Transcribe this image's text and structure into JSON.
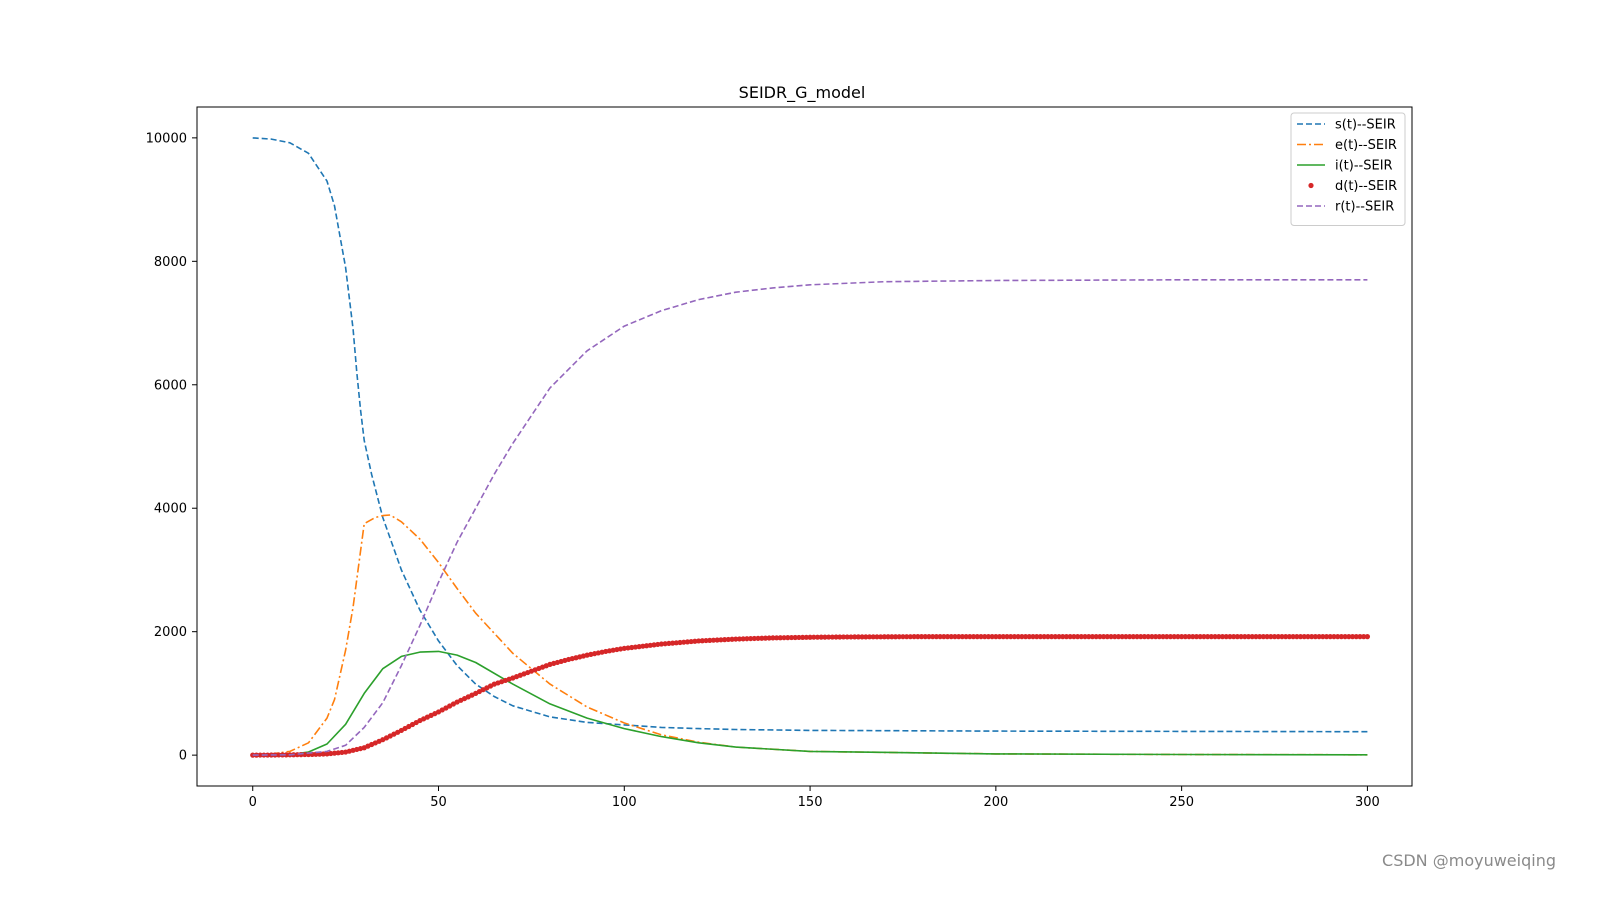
{
  "chart_data": {
    "type": "line",
    "title": "SEIDR_G_model",
    "xlabel": "",
    "ylabel": "",
    "xlim": [
      -15,
      312
    ],
    "ylim": [
      -500,
      10500
    ],
    "xticks": [
      0,
      50,
      100,
      150,
      200,
      250,
      300
    ],
    "yticks": [
      0,
      2000,
      4000,
      6000,
      8000,
      10000
    ],
    "grid": false,
    "legend_position": "top-right",
    "series": [
      {
        "name": "s(t)--SEIR",
        "color": "#1f77b4",
        "style": "dashed",
        "x": [
          0,
          5,
          10,
          15,
          20,
          22,
          25,
          27,
          28,
          29,
          30,
          32,
          35,
          40,
          45,
          50,
          55,
          60,
          65,
          70,
          80,
          90,
          100,
          110,
          120,
          130,
          150,
          200,
          250,
          300
        ],
        "y": [
          10000,
          9980,
          9920,
          9750,
          9300,
          8900,
          7900,
          6900,
          6200,
          5600,
          5100,
          4550,
          3850,
          3000,
          2350,
          1850,
          1450,
          1150,
          950,
          800,
          620,
          530,
          490,
          450,
          430,
          415,
          400,
          390,
          385,
          380
        ]
      },
      {
        "name": "e(t)--SEIR",
        "color": "#ff7f0e",
        "style": "dashdot",
        "x": [
          0,
          5,
          10,
          15,
          20,
          22,
          25,
          27,
          30,
          33,
          35,
          37,
          40,
          45,
          50,
          55,
          60,
          70,
          80,
          90,
          100,
          110,
          120,
          130,
          150,
          200,
          250,
          300
        ],
        "y": [
          0,
          20,
          60,
          200,
          600,
          900,
          1700,
          2400,
          3750,
          3850,
          3880,
          3890,
          3780,
          3500,
          3120,
          2700,
          2300,
          1650,
          1150,
          780,
          520,
          330,
          210,
          130,
          60,
          20,
          10,
          5
        ]
      },
      {
        "name": "i(t)--SEIR",
        "color": "#2ca02c",
        "style": "solid",
        "x": [
          0,
          10,
          15,
          20,
          25,
          30,
          35,
          40,
          45,
          50,
          55,
          60,
          70,
          80,
          90,
          100,
          110,
          120,
          130,
          150,
          200,
          250,
          300
        ],
        "y": [
          0,
          10,
          50,
          180,
          500,
          1000,
          1400,
          1600,
          1670,
          1680,
          1620,
          1500,
          1150,
          830,
          600,
          430,
          300,
          200,
          130,
          60,
          20,
          10,
          5
        ]
      },
      {
        "name": "d(t)--SEIR",
        "color": "#d62728",
        "style": "dots",
        "x": [
          0,
          5,
          10,
          15,
          20,
          25,
          30,
          35,
          40,
          45,
          50,
          55,
          60,
          65,
          70,
          75,
          80,
          85,
          90,
          95,
          100,
          110,
          120,
          130,
          140,
          150,
          160,
          180,
          200,
          250,
          300
        ],
        "y": [
          0,
          2,
          5,
          10,
          20,
          50,
          120,
          250,
          400,
          560,
          700,
          860,
          1000,
          1150,
          1250,
          1360,
          1470,
          1550,
          1620,
          1680,
          1730,
          1800,
          1850,
          1880,
          1900,
          1910,
          1915,
          1920,
          1920,
          1920,
          1920
        ]
      },
      {
        "name": "r(t)--SEIR",
        "color": "#9467bd",
        "style": "dashed",
        "x": [
          0,
          10,
          20,
          25,
          30,
          35,
          40,
          45,
          50,
          55,
          60,
          65,
          70,
          80,
          90,
          100,
          110,
          120,
          130,
          140,
          150,
          170,
          200,
          250,
          300
        ],
        "y": [
          0,
          5,
          60,
          160,
          450,
          850,
          1450,
          2100,
          2800,
          3450,
          4000,
          4550,
          5050,
          5950,
          6550,
          6950,
          7200,
          7380,
          7500,
          7570,
          7620,
          7670,
          7690,
          7700,
          7700
        ]
      }
    ]
  },
  "watermark": "CSDN @moyuweiqing"
}
